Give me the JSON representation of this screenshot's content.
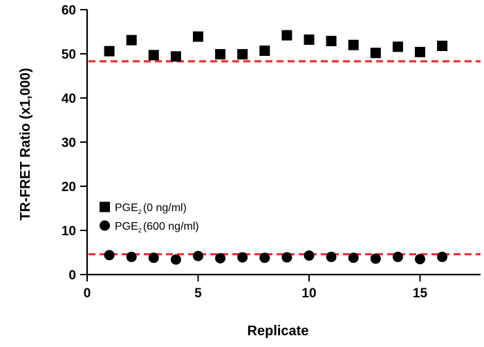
{
  "chart_data": {
    "type": "scatter",
    "xlabel": "Replicate",
    "ylabel": "TR-FRET Ratio (x1,000)",
    "xlim": [
      0,
      18
    ],
    "ylim": [
      0,
      60
    ],
    "x_ticks": [
      "0",
      "5",
      "10",
      "15"
    ],
    "y_ticks": [
      "0",
      "10",
      "20",
      "30",
      "40",
      "50",
      "60"
    ],
    "grid": false,
    "legend_position": "lower-left",
    "series": [
      {
        "name": "PGE2 (0 ng/ml)",
        "legend_main": "PGE",
        "legend_sub": "2",
        "legend_rest": "(0 ng/ml)",
        "marker": "square",
        "color": "#000000",
        "x": [
          1,
          2,
          3,
          4,
          5,
          6,
          7,
          8,
          9,
          10,
          11,
          12,
          13,
          14,
          15,
          16
        ],
        "y": [
          50.6,
          53.1,
          49.7,
          49.4,
          53.9,
          49.9,
          49.9,
          50.7,
          54.2,
          53.2,
          52.9,
          52.0,
          50.2,
          51.6,
          50.4,
          51.8
        ]
      },
      {
        "name": "PGE2 (600 ng/ml)",
        "legend_main": "PGE",
        "legend_sub": "2",
        "legend_rest": "(600 ng/ml)",
        "marker": "circle",
        "color": "#000000",
        "x": [
          1,
          2,
          3,
          4,
          5,
          6,
          7,
          8,
          9,
          10,
          11,
          12,
          13,
          14,
          15,
          16
        ],
        "y": [
          4.4,
          4.0,
          3.8,
          3.4,
          4.2,
          3.7,
          3.9,
          3.8,
          3.9,
          4.3,
          4.0,
          3.8,
          3.6,
          4.0,
          3.5,
          4.0
        ]
      }
    ],
    "reference_lines": [
      {
        "y": 48.3,
        "color": "#e8323a",
        "style": "dashed"
      },
      {
        "y": 4.6,
        "color": "#e8323a",
        "style": "dashed"
      }
    ]
  }
}
